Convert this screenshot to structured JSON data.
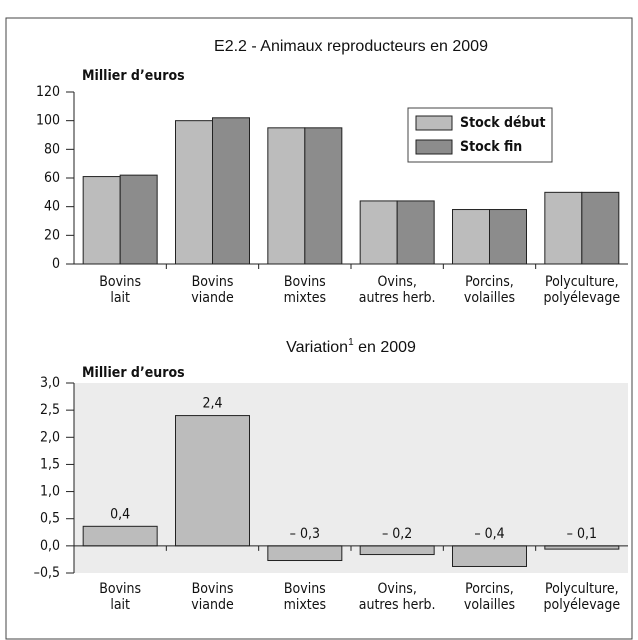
{
  "chart_data": [
    {
      "type": "bar",
      "title": "E2.2 - Animaux reproducteurs en 2009",
      "y_label": "Millier d’euros",
      "categories": [
        [
          "Bovins",
          "lait"
        ],
        [
          "Bovins",
          "viande"
        ],
        [
          "Bovins",
          "mixtes"
        ],
        [
          "Ovins,",
          "autres herb."
        ],
        [
          "Porcins,",
          "volailles"
        ],
        [
          "Polyculture,",
          "polyélevage"
        ]
      ],
      "series": [
        {
          "name": "Stock début",
          "color": "#bcbcbc",
          "values": [
            61,
            100,
            95,
            44,
            38,
            50
          ]
        },
        {
          "name": "Stock fin",
          "color": "#8c8c8c",
          "values": [
            62,
            102,
            95,
            44,
            38,
            50
          ]
        }
      ],
      "ylim": [
        0,
        120
      ],
      "yticks": [
        0,
        20,
        40,
        60,
        80,
        100,
        120
      ],
      "legend": "upper right"
    },
    {
      "type": "bar",
      "title": [
        "Variation",
        "1",
        " en 2009"
      ],
      "y_label": "Millier d’euros",
      "categories": [
        [
          "Bovins",
          "lait"
        ],
        [
          "Bovins",
          "viande"
        ],
        [
          "Bovins",
          "mixtes"
        ],
        [
          "Ovins,",
          "autres herb."
        ],
        [
          "Porcins,",
          "volailles"
        ],
        [
          "Polyculture,",
          "polyélevage"
        ]
      ],
      "values": [
        0.36,
        2.4,
        -0.27,
        -0.16,
        -0.38,
        -0.06
      ],
      "value_labels": [
        "0,4",
        "2,4",
        "– 0,3",
        "– 0,2",
        "– 0,4",
        "– 0,1"
      ],
      "color": "#bcbcbc",
      "background": "#ececec",
      "ylim": [
        -0.5,
        3.0
      ],
      "yticks": [
        {
          "value": -0.5,
          "label": "–0,5"
        },
        {
          "value": 0,
          "label": "0,0"
        },
        {
          "value": 0.5,
          "label": "0,5"
        },
        {
          "value": 1.0,
          "label": "1,0"
        },
        {
          "value": 1.5,
          "label": "1,5"
        },
        {
          "value": 2.0,
          "label": "2,0"
        },
        {
          "value": 2.5,
          "label": "2,5"
        },
        {
          "value": 3.0,
          "label": "3,0"
        }
      ]
    }
  ]
}
